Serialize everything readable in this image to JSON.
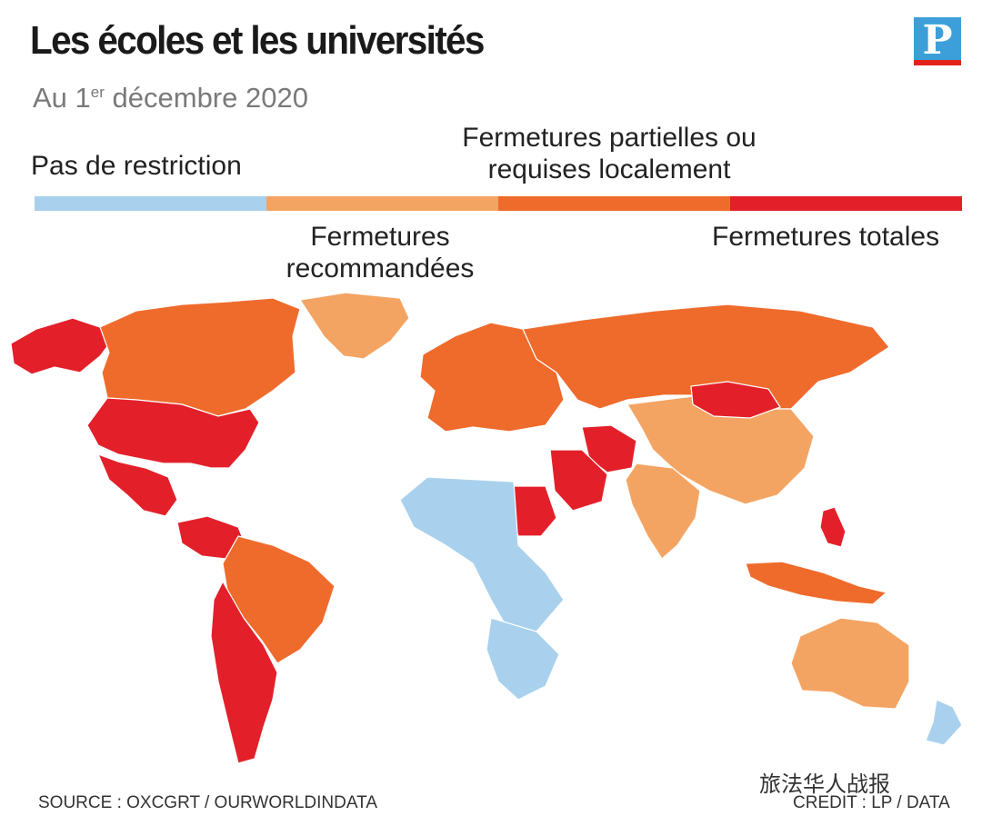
{
  "title": "Les écoles et les universités",
  "date": {
    "prefix": "Au 1",
    "sup": "er",
    "suffix": " décembre 2020"
  },
  "logo": {
    "letter": "P",
    "color": "#3c9fd9",
    "bar_color": "#e2231a"
  },
  "legend": [
    {
      "label": "Pas de restriction",
      "color": "#a9d1ed"
    },
    {
      "label": "Fermetures recommandées",
      "color": "#f4a462"
    },
    {
      "label": "Fermetures partielles ou requises localement",
      "color": "#ef6b2c"
    },
    {
      "label": "Fermetures totales",
      "color": "#e3202a"
    }
  ],
  "source": "SOURCE : OXCGRT / OURWORLDINDATA",
  "credit": "CREDIT : LP / DATA",
  "watermark": "旅法华人战报",
  "map": {
    "regions": [
      {
        "name": "Alaska",
        "level": 3
      },
      {
        "name": "Canada",
        "level": 2
      },
      {
        "name": "Greenland",
        "level": 1
      },
      {
        "name": "USA",
        "level": 3
      },
      {
        "name": "Mexico",
        "level": 3
      },
      {
        "name": "Colombia",
        "level": 3
      },
      {
        "name": "Brazil",
        "level": 2
      },
      {
        "name": "Argentina",
        "level": 3
      },
      {
        "name": "Europe",
        "level": 2
      },
      {
        "name": "Russia",
        "level": 2
      },
      {
        "name": "China",
        "level": 1
      },
      {
        "name": "Mongolia",
        "level": 3
      },
      {
        "name": "India",
        "level": 1
      },
      {
        "name": "Iran",
        "level": 3
      },
      {
        "name": "Saudi Arabia",
        "level": 3
      },
      {
        "name": "Sudan",
        "level": 3
      },
      {
        "name": "Australia",
        "level": 1
      },
      {
        "name": "Indonesia",
        "level": 2
      },
      {
        "name": "Philippines",
        "level": 3
      },
      {
        "name": "Central Africa",
        "level": 0
      },
      {
        "name": "Southern Africa",
        "level": 0
      },
      {
        "name": "New Zealand",
        "level": 0
      }
    ]
  }
}
